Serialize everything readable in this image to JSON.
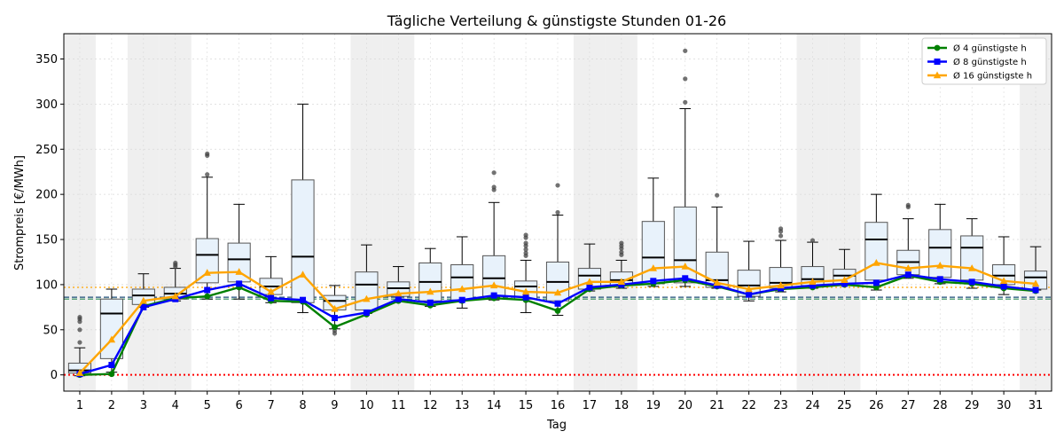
{
  "chart_data": {
    "type": "box",
    "title": "Tägliche Verteilung & günstigste Stunden 01-26",
    "xlabel": "Tag",
    "ylabel": "Strompreis [€/MWh]",
    "ylim": [
      -18,
      378
    ],
    "yticks": [
      0,
      50,
      100,
      150,
      200,
      250,
      300,
      350
    ],
    "grid": true,
    "legend_position": "top-right",
    "categories": [
      "1",
      "2",
      "3",
      "4",
      "5",
      "6",
      "7",
      "8",
      "9",
      "10",
      "11",
      "12",
      "13",
      "14",
      "15",
      "16",
      "17",
      "18",
      "19",
      "20",
      "21",
      "22",
      "23",
      "24",
      "25",
      "26",
      "27",
      "28",
      "29",
      "30",
      "31"
    ],
    "weekend_days": [
      "1",
      "3",
      "4",
      "10",
      "11",
      "17",
      "18",
      "24",
      "25",
      "31"
    ],
    "boxes": [
      {
        "day": "1",
        "q1": 2,
        "median": 5,
        "q3": 13,
        "low": -1,
        "high": 30,
        "outliers": [
          36,
          50,
          59,
          62,
          64
        ]
      },
      {
        "day": "2",
        "q1": 18,
        "median": 68,
        "q3": 84,
        "low": 3,
        "high": 95,
        "outliers": []
      },
      {
        "day": "3",
        "q1": 78,
        "median": 88,
        "q3": 95,
        "low": 75,
        "high": 112,
        "outliers": []
      },
      {
        "day": "4",
        "q1": 84,
        "median": 90,
        "q3": 97,
        "low": 82,
        "high": 118,
        "outliers": [
          120,
          122,
          124
        ]
      },
      {
        "day": "5",
        "q1": 102,
        "median": 133,
        "q3": 151,
        "low": 84,
        "high": 219,
        "outliers": [
          222,
          243,
          245
        ]
      },
      {
        "day": "6",
        "q1": 103,
        "median": 128,
        "q3": 146,
        "low": 84,
        "high": 189,
        "outliers": []
      },
      {
        "day": "7",
        "q1": 89,
        "median": 98,
        "q3": 107,
        "low": 80,
        "high": 131,
        "outliers": []
      },
      {
        "day": "8",
        "q1": 80,
        "median": 131,
        "q3": 216,
        "low": 69,
        "high": 300,
        "outliers": []
      },
      {
        "day": "9",
        "q1": 72,
        "median": 82,
        "q3": 88,
        "low": 51,
        "high": 99,
        "outliers": [
          46,
          49
        ]
      },
      {
        "day": "10",
        "q1": 72,
        "median": 100,
        "q3": 114,
        "low": 68,
        "high": 144,
        "outliers": []
      },
      {
        "day": "11",
        "q1": 87,
        "median": 96,
        "q3": 103,
        "low": 81,
        "high": 120,
        "outliers": []
      },
      {
        "day": "12",
        "q1": 82,
        "median": 103,
        "q3": 124,
        "low": 76,
        "high": 140,
        "outliers": []
      },
      {
        "day": "13",
        "q1": 83,
        "median": 108,
        "q3": 122,
        "low": 74,
        "high": 153,
        "outliers": []
      },
      {
        "day": "14",
        "q1": 87,
        "median": 107,
        "q3": 132,
        "low": 83,
        "high": 191,
        "outliers": [
          205,
          208,
          224
        ]
      },
      {
        "day": "15",
        "q1": 84,
        "median": 98,
        "q3": 104,
        "low": 69,
        "high": 127,
        "outliers": [
          132,
          135,
          139,
          143,
          146,
          152,
          155
        ]
      },
      {
        "day": "16",
        "q1": 82,
        "median": 103,
        "q3": 125,
        "low": 66,
        "high": 177,
        "outliers": [
          180,
          210
        ]
      },
      {
        "day": "17",
        "q1": 95,
        "median": 110,
        "q3": 118,
        "low": 93,
        "high": 145,
        "outliers": []
      },
      {
        "day": "18",
        "q1": 99,
        "median": 105,
        "q3": 114,
        "low": 96,
        "high": 127,
        "outliers": [
          133,
          136,
          140,
          143,
          146
        ]
      },
      {
        "day": "19",
        "q1": 101,
        "median": 130,
        "q3": 170,
        "low": 98,
        "high": 218,
        "outliers": []
      },
      {
        "day": "20",
        "q1": 102,
        "median": 127,
        "q3": 186,
        "low": 98,
        "high": 295,
        "outliers": [
          302,
          328,
          359
        ]
      },
      {
        "day": "21",
        "q1": 97,
        "median": 105,
        "q3": 136,
        "low": 96,
        "high": 186,
        "outliers": [
          199
        ]
      },
      {
        "day": "22",
        "q1": 87,
        "median": 99,
        "q3": 116,
        "low": 82,
        "high": 148,
        "outliers": []
      },
      {
        "day": "23",
        "q1": 96,
        "median": 102,
        "q3": 119,
        "low": 92,
        "high": 149,
        "outliers": [
          154,
          159,
          162
        ]
      },
      {
        "day": "24",
        "q1": 99,
        "median": 106,
        "q3": 120,
        "low": 96,
        "high": 147,
        "outliers": [
          149
        ]
      },
      {
        "day": "25",
        "q1": 101,
        "median": 110,
        "q3": 117,
        "low": 100,
        "high": 139,
        "outliers": []
      },
      {
        "day": "26",
        "q1": 105,
        "median": 150,
        "q3": 169,
        "low": 94,
        "high": 200,
        "outliers": []
      },
      {
        "day": "27",
        "q1": 111,
        "median": 125,
        "q3": 138,
        "low": 107,
        "high": 173,
        "outliers": [
          186,
          188
        ]
      },
      {
        "day": "28",
        "q1": 108,
        "median": 141,
        "q3": 161,
        "low": 101,
        "high": 189,
        "outliers": []
      },
      {
        "day": "29",
        "q1": 105,
        "median": 141,
        "q3": 154,
        "low": 96,
        "high": 173,
        "outliers": []
      },
      {
        "day": "30",
        "q1": 100,
        "median": 110,
        "q3": 122,
        "low": 89,
        "high": 153,
        "outliers": []
      },
      {
        "day": "31",
        "q1": 95,
        "median": 108,
        "q3": 115,
        "low": 94,
        "high": 142,
        "outliers": []
      }
    ],
    "series": [
      {
        "name": "Ø 4 günstigste h",
        "color": "#008000",
        "marker": "circle",
        "values": [
          0,
          1,
          76,
          85,
          87,
          97,
          82,
          81,
          53,
          67,
          82,
          77,
          82,
          85,
          83,
          71,
          95,
          99,
          101,
          105,
          98,
          89,
          95,
          97,
          100,
          97,
          110,
          103,
          101,
          96,
          93
        ]
      },
      {
        "name": "Ø 8 günstigste h",
        "color": "#0000ff",
        "marker": "square",
        "values": [
          1,
          11,
          75,
          84,
          94,
          101,
          85,
          83,
          63,
          69,
          84,
          80,
          83,
          88,
          86,
          79,
          97,
          100,
          104,
          107,
          99,
          89,
          96,
          99,
          101,
          102,
          111,
          106,
          103,
          98,
          94
        ]
      },
      {
        "name": "Ø 16 günstigste h",
        "color": "#ffa500",
        "marker": "triangle",
        "values": [
          2,
          39,
          82,
          87,
          113,
          114,
          92,
          111,
          73,
          84,
          90,
          92,
          95,
          99,
          92,
          91,
          103,
          103,
          118,
          120,
          102,
          95,
          99,
          103,
          105,
          124,
          118,
          121,
          118,
          104,
          101
        ]
      }
    ],
    "reference_lines": [
      {
        "value": 97,
        "color": "#ffa500",
        "style": "dotted"
      },
      {
        "value": 86,
        "color": "#1f4e79",
        "style": "dashed"
      },
      {
        "value": 84,
        "color": "#2e8b57",
        "style": "dashed"
      },
      {
        "value": 0,
        "color": "#ff0000",
        "style": "dotted"
      }
    ],
    "colors": {
      "box_fill": "#e8f2fb",
      "box_edge": "#555555",
      "weekend_shade": "#efefef",
      "grid": "#d9d9d9"
    }
  }
}
